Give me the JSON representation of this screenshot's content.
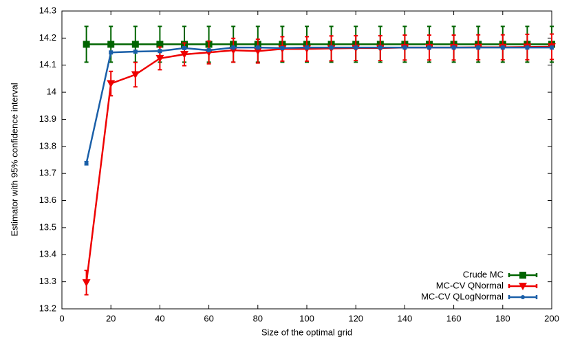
{
  "chart_data": {
    "type": "line",
    "x_label": "Size of the optimal grid",
    "y_label": "Estimator with 95% confidence interval",
    "x": [
      10,
      20,
      30,
      40,
      50,
      60,
      70,
      80,
      90,
      100,
      110,
      120,
      130,
      140,
      150,
      160,
      170,
      180,
      190,
      200
    ],
    "series": [
      {
        "name": "Crude MC",
        "color": "#006400",
        "marker": "square",
        "values": [
          14.177,
          14.177,
          14.177,
          14.177,
          14.177,
          14.177,
          14.177,
          14.177,
          14.177,
          14.177,
          14.177,
          14.177,
          14.177,
          14.177,
          14.177,
          14.177,
          14.177,
          14.177,
          14.177,
          14.177
        ],
        "errors": [
          0.066,
          0.066,
          0.066,
          0.066,
          0.066,
          0.066,
          0.066,
          0.066,
          0.066,
          0.066,
          0.066,
          0.066,
          0.066,
          0.066,
          0.066,
          0.066,
          0.066,
          0.066,
          0.066,
          0.066
        ]
      },
      {
        "name": "MC-CV QNormal",
        "color": "#ee0000",
        "marker": "triangle-down",
        "values": [
          13.297,
          14.032,
          14.065,
          14.125,
          14.14,
          14.147,
          14.155,
          14.152,
          14.16,
          14.16,
          14.162,
          14.163,
          14.163,
          14.165,
          14.165,
          14.165,
          14.166,
          14.166,
          14.167,
          14.168
        ],
        "errors": [
          0.045,
          0.045,
          0.045,
          0.042,
          0.042,
          0.042,
          0.044,
          0.044,
          0.045,
          0.045,
          0.046,
          0.046,
          0.046,
          0.046,
          0.046,
          0.046,
          0.046,
          0.046,
          0.047,
          0.047
        ]
      },
      {
        "name": "MC-CV QLogNormal",
        "color": "#1a5fa8",
        "marker": "circle",
        "values": [
          13.738,
          14.147,
          14.15,
          14.152,
          14.163,
          14.155,
          14.165,
          14.165,
          14.163,
          14.165,
          14.165,
          14.165,
          14.165,
          14.165,
          14.165,
          14.165,
          14.165,
          14.165,
          14.165,
          14.165
        ],
        "errors": [
          0.006,
          0.005,
          0.005,
          0.005,
          0.005,
          0.005,
          0.005,
          0.005,
          0.005,
          0.005,
          0.005,
          0.005,
          0.005,
          0.005,
          0.005,
          0.005,
          0.005,
          0.005,
          0.005,
          0.005
        ]
      }
    ],
    "xlim": [
      0,
      200
    ],
    "xticks": [
      0,
      20,
      40,
      60,
      80,
      100,
      120,
      140,
      160,
      180,
      200
    ],
    "ylim": [
      13.2,
      14.3
    ],
    "yticks": [
      13.2,
      13.3,
      13.4,
      13.5,
      13.6,
      13.7,
      13.8,
      13.9,
      14,
      14.1,
      14.2,
      14.3
    ],
    "legend": "lower right",
    "grid": false
  }
}
